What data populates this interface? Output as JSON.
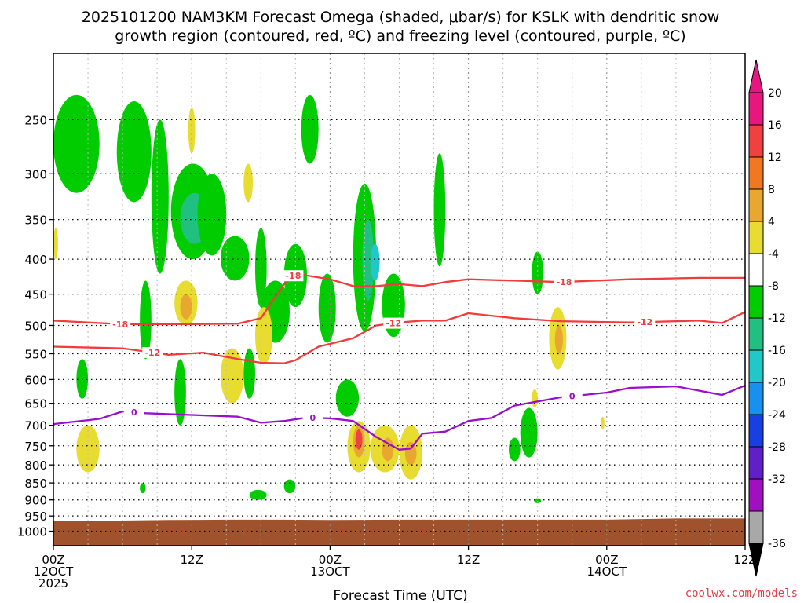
{
  "chart_data": {
    "type": "heatmap",
    "title_line1": "2025101200 NAM3KM Forecast Omega (shaded, μbar/s) for KSLK with dendritic snow",
    "title_line2": "growth region (contoured, red, ºC) and freezing level (contoured, purple, ºC)",
    "xlabel": "Forecast Time (UTC)",
    "credit": "coolwx.com/models",
    "x_range_hours": [
      0,
      60
    ],
    "y_range_mb": [
      200,
      1050
    ],
    "x_ticks": [
      {
        "hour": 0,
        "lines": [
          "00Z",
          "12OCT",
          "2025"
        ]
      },
      {
        "hour": 12,
        "lines": [
          "12Z"
        ]
      },
      {
        "hour": 24,
        "lines": [
          "00Z",
          "13OCT"
        ]
      },
      {
        "hour": 36,
        "lines": [
          "12Z"
        ]
      },
      {
        "hour": 48,
        "lines": [
          "00Z",
          "14OCT"
        ]
      },
      {
        "hour": 60,
        "lines": [
          "12Z"
        ]
      }
    ],
    "y_ticks": [
      250,
      300,
      350,
      400,
      450,
      500,
      550,
      600,
      650,
      700,
      750,
      800,
      850,
      900,
      950,
      1000
    ],
    "colorbar": {
      "labels": [
        "20",
        "16",
        "12",
        "8",
        "4",
        "-4",
        "-8",
        "-12",
        "-16",
        "-20",
        "-24",
        "-28",
        "-32",
        "-36"
      ],
      "bins": [
        {
          "lo": 20,
          "hi": 24,
          "color": "#e8177f"
        },
        {
          "lo": 16,
          "hi": 20,
          "color": "#f04040"
        },
        {
          "lo": 12,
          "hi": 16,
          "color": "#f07820"
        },
        {
          "lo": 8,
          "hi": 12,
          "color": "#e8a830"
        },
        {
          "lo": 4,
          "hi": 8,
          "color": "#e8dc30"
        },
        {
          "lo": -4,
          "hi": 4,
          "color": "#ffffff"
        },
        {
          "lo": -8,
          "hi": -4,
          "color": "#00cc00"
        },
        {
          "lo": -12,
          "hi": -8,
          "color": "#20c080"
        },
        {
          "lo": -16,
          "hi": -12,
          "color": "#20c8c8"
        },
        {
          "lo": -20,
          "hi": -16,
          "color": "#1890f0"
        },
        {
          "lo": -24,
          "hi": -20,
          "color": "#1840e0"
        },
        {
          "lo": -28,
          "hi": -24,
          "color": "#6020c8"
        },
        {
          "lo": -32,
          "hi": -28,
          "color": "#a010c0"
        },
        {
          "lo": -36,
          "hi": -32,
          "color": "#a8a8a8"
        }
      ]
    },
    "surface_pressure_mb": [
      [
        0,
        965
      ],
      [
        5,
        965
      ],
      [
        10,
        963
      ],
      [
        15,
        962
      ],
      [
        20,
        962
      ],
      [
        24,
        963
      ],
      [
        30,
        962
      ],
      [
        36,
        962
      ],
      [
        42,
        962
      ],
      [
        48,
        962
      ],
      [
        54,
        958
      ],
      [
        60,
        958
      ]
    ],
    "omega_cells": [
      {
        "x": [
          0.0,
          4.0
        ],
        "p": [
          230,
          320
        ],
        "v": -6
      },
      {
        "x": [
          5.5,
          8.5
        ],
        "p": [
          235,
          330
        ],
        "v": -6
      },
      {
        "x": [
          8.5,
          10.0
        ],
        "p": [
          250,
          420
        ],
        "v": -6
      },
      {
        "x": [
          10.2,
          14.0
        ],
        "p": [
          290,
          400
        ],
        "v": -6
      },
      {
        "x": [
          11.0,
          13.5
        ],
        "p": [
          320,
          380
        ],
        "v": -10
      },
      {
        "x": [
          12.5,
          15.0
        ],
        "p": [
          300,
          395
        ],
        "v": -6
      },
      {
        "x": [
          14.5,
          17.0
        ],
        "p": [
          370,
          430
        ],
        "v": -5
      },
      {
        "x": [
          17.5,
          18.5
        ],
        "p": [
          360,
          470
        ],
        "v": -6
      },
      {
        "x": [
          18.0,
          20.5
        ],
        "p": [
          430,
          530
        ],
        "v": -5
      },
      {
        "x": [
          20.0,
          22.0
        ],
        "p": [
          380,
          470
        ],
        "v": -6
      },
      {
        "x": [
          21.5,
          23.0
        ],
        "p": [
          230,
          290
        ],
        "v": -5
      },
      {
        "x": [
          23.0,
          24.5
        ],
        "p": [
          420,
          530
        ],
        "v": -6
      },
      {
        "x": [
          26.0,
          28.0
        ],
        "p": [
          310,
          510
        ],
        "v": -6
      },
      {
        "x": [
          26.8,
          27.8
        ],
        "p": [
          350,
          460
        ],
        "v": -10
      },
      {
        "x": [
          27.5,
          28.3
        ],
        "p": [
          380,
          430
        ],
        "v": -14
      },
      {
        "x": [
          28.5,
          30.5
        ],
        "p": [
          420,
          520
        ],
        "v": -6
      },
      {
        "x": [
          33.0,
          34.0
        ],
        "p": [
          280,
          410
        ],
        "v": -6
      },
      {
        "x": [
          7.5,
          8.5
        ],
        "p": [
          430,
          560
        ],
        "v": -6
      },
      {
        "x": [
          10.5,
          11.5
        ],
        "p": [
          560,
          700
        ],
        "v": -6
      },
      {
        "x": [
          16.5,
          17.5
        ],
        "p": [
          540,
          640
        ],
        "v": -6
      },
      {
        "x": [
          2.0,
          3.0
        ],
        "p": [
          560,
          640
        ],
        "v": -6
      },
      {
        "x": [
          24.5,
          26.5
        ],
        "p": [
          600,
          680
        ],
        "v": -6
      },
      {
        "x": [
          41.5,
          42.5
        ],
        "p": [
          390,
          450
        ],
        "v": -6
      },
      {
        "x": [
          40.5,
          42.0
        ],
        "p": [
          660,
          780
        ],
        "v": -6
      },
      {
        "x": [
          39.5,
          40.5
        ],
        "p": [
          730,
          790
        ],
        "v": -6
      },
      {
        "x": [
          17.0,
          18.5
        ],
        "p": [
          870,
          900
        ],
        "v": -6
      },
      {
        "x": [
          20.0,
          21.0
        ],
        "p": [
          840,
          880
        ],
        "v": -6
      },
      {
        "x": [
          7.5,
          8.0
        ],
        "p": [
          850,
          880
        ],
        "v": -6
      },
      {
        "x": [
          41.7,
          42.3
        ],
        "p": [
          895,
          910
        ],
        "v": -6
      },
      {
        "x": [
          10.5,
          12.5
        ],
        "p": [
          430,
          500
        ],
        "v": 5
      },
      {
        "x": [
          11.0,
          12.0
        ],
        "p": [
          450,
          490
        ],
        "v": 9
      },
      {
        "x": [
          14.5,
          16.5
        ],
        "p": [
          540,
          650
        ],
        "v": 5
      },
      {
        "x": [
          2.0,
          4.0
        ],
        "p": [
          700,
          820
        ],
        "v": 5
      },
      {
        "x": [
          17.5,
          19.0
        ],
        "p": [
          470,
          570
        ],
        "v": 5
      },
      {
        "x": [
          16.5,
          17.3
        ],
        "p": [
          290,
          330
        ],
        "v": 5
      },
      {
        "x": [
          11.7,
          12.3
        ],
        "p": [
          240,
          280
        ],
        "v": 5
      },
      {
        "x": [
          0.0,
          0.4
        ],
        "p": [
          360,
          400
        ],
        "v": 5
      },
      {
        "x": [
          25.5,
          27.5
        ],
        "p": [
          690,
          820
        ],
        "v": 5
      },
      {
        "x": [
          27.5,
          30.0
        ],
        "p": [
          700,
          820
        ],
        "v": 5
      },
      {
        "x": [
          30.0,
          32.0
        ],
        "p": [
          700,
          840
        ],
        "v": 5
      },
      {
        "x": [
          26.0,
          27.0
        ],
        "p": [
          700,
          780
        ],
        "v": 10
      },
      {
        "x": [
          26.2,
          26.8
        ],
        "p": [
          710,
          760
        ],
        "v": 18
      },
      {
        "x": [
          28.5,
          29.5
        ],
        "p": [
          730,
          790
        ],
        "v": 9
      },
      {
        "x": [
          30.5,
          31.5
        ],
        "p": [
          740,
          800
        ],
        "v": 9
      },
      {
        "x": [
          43.0,
          44.5
        ],
        "p": [
          470,
          580
        ],
        "v": 5
      },
      {
        "x": [
          43.5,
          44.2
        ],
        "p": [
          500,
          550
        ],
        "v": 10
      },
      {
        "x": [
          41.5,
          42.0
        ],
        "p": [
          620,
          660
        ],
        "v": 5
      },
      {
        "x": [
          47.5,
          47.8
        ],
        "p": [
          680,
          710
        ],
        "v": 5
      }
    ],
    "contours": [
      {
        "name": "-18",
        "color": "#f03c3c",
        "labels": [
          {
            "hour": 5.8,
            "text": "-18"
          },
          {
            "hour": 20.8,
            "text": "-18"
          },
          {
            "hour": 44.3,
            "text": "-18"
          }
        ],
        "points": [
          [
            0,
            492
          ],
          [
            6,
            498
          ],
          [
            12,
            498
          ],
          [
            16,
            497
          ],
          [
            18,
            488
          ],
          [
            20,
            435
          ],
          [
            21,
            420
          ],
          [
            24,
            428
          ],
          [
            26,
            438
          ],
          [
            28,
            438
          ],
          [
            30,
            435
          ],
          [
            32,
            438
          ],
          [
            34,
            432
          ],
          [
            36,
            428
          ],
          [
            40,
            430
          ],
          [
            44,
            432
          ],
          [
            50,
            428
          ],
          [
            56,
            426
          ],
          [
            60,
            426
          ]
        ]
      },
      {
        "name": "-12",
        "color": "#f03c3c",
        "labels": [
          {
            "hour": 8.6,
            "text": "-12"
          },
          {
            "hour": 29.5,
            "text": "-12"
          },
          {
            "hour": 51.3,
            "text": "-12"
          }
        ],
        "points": [
          [
            0,
            537
          ],
          [
            6,
            540
          ],
          [
            10,
            552
          ],
          [
            13,
            548
          ],
          [
            16,
            560
          ],
          [
            18,
            567
          ],
          [
            20,
            568
          ],
          [
            21,
            562
          ],
          [
            23,
            537
          ],
          [
            26,
            522
          ],
          [
            28,
            500
          ],
          [
            30,
            495
          ],
          [
            32,
            492
          ],
          [
            34,
            492
          ],
          [
            36,
            480
          ],
          [
            40,
            488
          ],
          [
            44,
            493
          ],
          [
            50,
            495
          ],
          [
            56,
            492
          ],
          [
            58,
            496
          ],
          [
            60,
            478
          ]
        ]
      },
      {
        "name": "0",
        "color": "#9910cc",
        "labels": [
          {
            "hour": 7.0,
            "text": "0"
          },
          {
            "hour": 22.5,
            "text": "0"
          },
          {
            "hour": 45.0,
            "text": "0"
          }
        ],
        "points": [
          [
            0,
            697
          ],
          [
            4,
            685
          ],
          [
            6,
            668
          ],
          [
            8,
            672
          ],
          [
            12,
            676
          ],
          [
            16,
            680
          ],
          [
            18,
            694
          ],
          [
            20,
            690
          ],
          [
            22,
            682
          ],
          [
            24,
            684
          ],
          [
            26,
            690
          ],
          [
            28,
            728
          ],
          [
            30,
            760
          ],
          [
            31,
            757
          ],
          [
            32,
            720
          ],
          [
            34,
            715
          ],
          [
            36,
            690
          ],
          [
            38,
            683
          ],
          [
            40,
            655
          ],
          [
            44,
            637
          ],
          [
            48,
            627
          ],
          [
            50,
            617
          ],
          [
            54,
            614
          ],
          [
            58,
            632
          ],
          [
            60,
            612
          ]
        ]
      }
    ]
  }
}
